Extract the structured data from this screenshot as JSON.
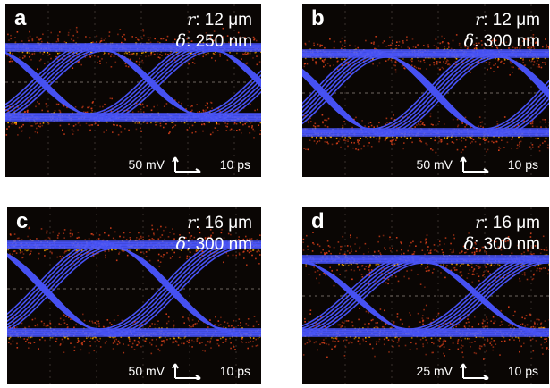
{
  "panels": [
    {
      "label": "a",
      "r_text": "r: 12 μm",
      "r_symbol": "r",
      "r_value": ": 12 μm",
      "d_symbol": "δ",
      "d_value": ": 250 nm",
      "v_scale": "50 mV",
      "t_scale": "10 ps"
    },
    {
      "label": "b",
      "r_symbol": "r",
      "r_value": ": 12 μm",
      "d_symbol": "δ",
      "d_value": ": 300 nm",
      "v_scale": "50 mV",
      "t_scale": "10 ps"
    },
    {
      "label": "c",
      "r_symbol": "r",
      "r_value": ": 16 μm",
      "d_symbol": "δ",
      "d_value": ": 300 nm",
      "v_scale": "50 mV",
      "t_scale": "10 ps"
    },
    {
      "label": "d",
      "r_symbol": "r",
      "r_value": ": 16 μm",
      "d_symbol": "δ",
      "d_value": ": 300 nm",
      "v_scale": "25 mV",
      "t_scale": "10 ps"
    }
  ],
  "colors": {
    "background": "#0a0604",
    "trace": "#4a56ff",
    "noise_hot": "#ffb000",
    "noise_warm": "#d8401a"
  }
}
